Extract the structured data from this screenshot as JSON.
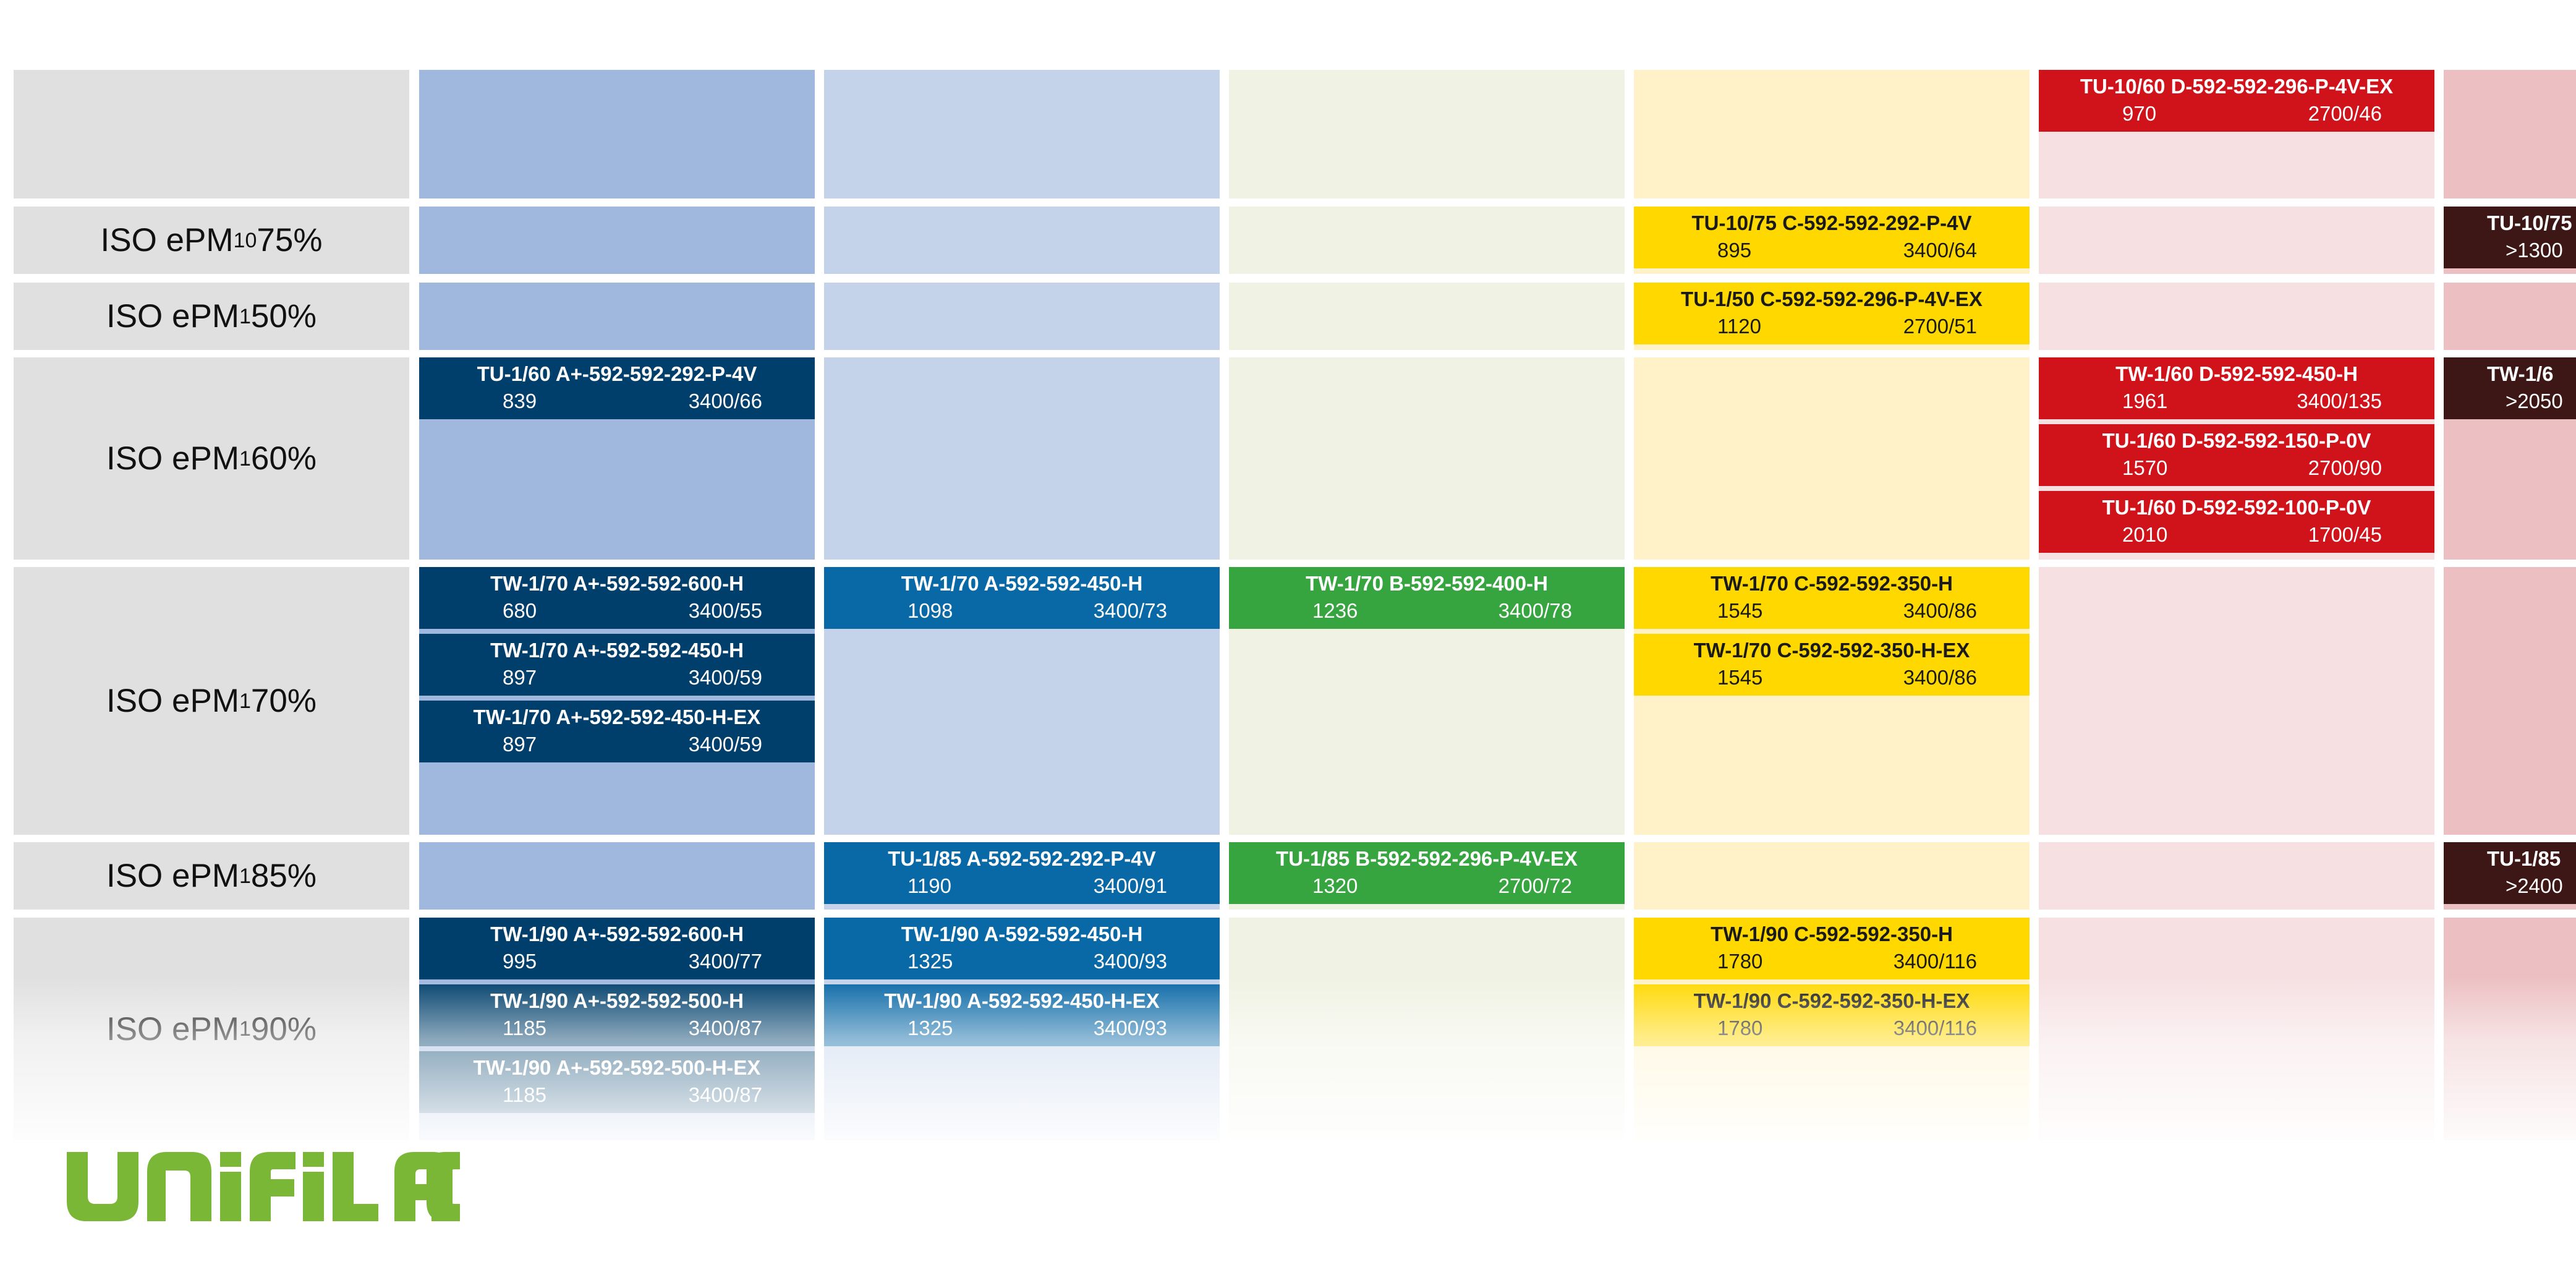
{
  "colors": {
    "label_bg": "#e0e0e0",
    "col_bg": [
      "#a1b8de",
      "#c4d3ea",
      "#f0f2e3",
      "#fff2c8",
      "#f6e0e2",
      "#ecc0c2"
    ],
    "prod_bg": {
      "navy": "#003f6b",
      "blue": "#0968a6",
      "green": "#36a43f",
      "yellow": "#ffd800",
      "red": "#d0121a",
      "maroon": "#3d1716"
    },
    "prod_fg": {
      "navy": "#ffffff",
      "blue": "#ffffff",
      "green": "#ffffff",
      "yellow": "#1a1a1a",
      "red": "#ffffff",
      "maroon": "#ffffff"
    },
    "logo_green": "#7bb737"
  },
  "rows": [
    {
      "prefix": "",
      "sub": "",
      "suffix": ""
    },
    {
      "prefix": "ISO ePM",
      "sub": "10",
      "suffix": " 75%"
    },
    {
      "prefix": "ISO ePM",
      "sub": "1",
      "suffix": " 50%"
    },
    {
      "prefix": "ISO ePM",
      "sub": "1",
      "suffix": " 60%"
    },
    {
      "prefix": "ISO ePM",
      "sub": "1",
      "suffix": " 70%"
    },
    {
      "prefix": "ISO ePM",
      "sub": "1",
      "suffix": " 85%"
    },
    {
      "prefix": "ISO ePM",
      "sub": "1",
      "suffix": " 90%"
    }
  ],
  "products": [
    {
      "row": 0,
      "col": 4,
      "slot": 0,
      "color": "red",
      "code": "TU-10/60 D-592-592-296-P-4V-EX",
      "a": "970",
      "b": "2700/46"
    },
    {
      "row": 1,
      "col": 3,
      "slot": 0,
      "color": "yellow",
      "code": "TU-10/75 C-592-592-292-P-4V",
      "a": "895",
      "b": "3400/64"
    },
    {
      "row": 1,
      "col": 5,
      "slot": 0,
      "color": "maroon",
      "code": "TU-10/75",
      "a": ">1300",
      "b": ""
    },
    {
      "row": 2,
      "col": 3,
      "slot": 0,
      "color": "yellow",
      "code": "TU-1/50 C-592-592-296-P-4V-EX",
      "a": "1120",
      "b": "2700/51"
    },
    {
      "row": 3,
      "col": 0,
      "slot": 0,
      "color": "navy",
      "code": "TU-1/60 A+-592-592-292-P-4V",
      "a": "839",
      "b": "3400/66"
    },
    {
      "row": 3,
      "col": 4,
      "slot": 0,
      "color": "red",
      "code": "TW-1/60 D-592-592-450-H",
      "a": "1961",
      "b": "3400/135"
    },
    {
      "row": 3,
      "col": 4,
      "slot": 1,
      "color": "red",
      "code": "TU-1/60 D-592-592-150-P-0V",
      "a": "1570",
      "b": "2700/90"
    },
    {
      "row": 3,
      "col": 4,
      "slot": 2,
      "color": "red",
      "code": "TU-1/60 D-592-592-100-P-0V",
      "a": "2010",
      "b": "1700/45"
    },
    {
      "row": 3,
      "col": 5,
      "slot": 0,
      "color": "maroon",
      "code": "TW-1/6",
      "a": ">2050",
      "b": ""
    },
    {
      "row": 4,
      "col": 0,
      "slot": 0,
      "color": "navy",
      "code": "TW-1/70 A+-592-592-600-H",
      "a": "680",
      "b": "3400/55"
    },
    {
      "row": 4,
      "col": 0,
      "slot": 1,
      "color": "navy",
      "code": "TW-1/70 A+-592-592-450-H",
      "a": "897",
      "b": "3400/59"
    },
    {
      "row": 4,
      "col": 0,
      "slot": 2,
      "color": "navy",
      "code": "TW-1/70 A+-592-592-450-H-EX",
      "a": "897",
      "b": "3400/59"
    },
    {
      "row": 4,
      "col": 1,
      "slot": 0,
      "color": "blue",
      "code": "TW-1/70 A-592-592-450-H",
      "a": "1098",
      "b": "3400/73"
    },
    {
      "row": 4,
      "col": 2,
      "slot": 0,
      "color": "green",
      "code": "TW-1/70 B-592-592-400-H",
      "a": "1236",
      "b": "3400/78"
    },
    {
      "row": 4,
      "col": 3,
      "slot": 0,
      "color": "yellow",
      "code": "TW-1/70 C-592-592-350-H",
      "a": "1545",
      "b": "3400/86"
    },
    {
      "row": 4,
      "col": 3,
      "slot": 1,
      "color": "yellow",
      "code": "TW-1/70 C-592-592-350-H-EX",
      "a": "1545",
      "b": "3400/86"
    },
    {
      "row": 5,
      "col": 1,
      "slot": 0,
      "color": "blue",
      "code": "TU-1/85 A-592-592-292-P-4V",
      "a": "1190",
      "b": "3400/91"
    },
    {
      "row": 5,
      "col": 2,
      "slot": 0,
      "color": "green",
      "code": "TU-1/85 B-592-592-296-P-4V-EX",
      "a": "1320",
      "b": "2700/72"
    },
    {
      "row": 5,
      "col": 5,
      "slot": 0,
      "color": "maroon",
      "code": "TU-1/85",
      "a": ">2400",
      "b": ""
    },
    {
      "row": 6,
      "col": 0,
      "slot": 0,
      "color": "navy",
      "code": "TW-1/90 A+-592-592-600-H",
      "a": "995",
      "b": "3400/77"
    },
    {
      "row": 6,
      "col": 0,
      "slot": 1,
      "color": "navy",
      "code": "TW-1/90 A+-592-592-500-H",
      "a": "1185",
      "b": "3400/87"
    },
    {
      "row": 6,
      "col": 0,
      "slot": 2,
      "color": "navy",
      "code": "TW-1/90 A+-592-592-500-H-EX",
      "a": "1185",
      "b": "3400/87"
    },
    {
      "row": 6,
      "col": 1,
      "slot": 0,
      "color": "blue",
      "code": "TW-1/90 A-592-592-450-H",
      "a": "1325",
      "b": "3400/93"
    },
    {
      "row": 6,
      "col": 1,
      "slot": 1,
      "color": "blue",
      "code": "TW-1/90 A-592-592-450-H-EX",
      "a": "1325",
      "b": "3400/93"
    },
    {
      "row": 6,
      "col": 3,
      "slot": 0,
      "color": "yellow",
      "code": "TW-1/90 C-592-592-350-H",
      "a": "1780",
      "b": "3400/116"
    },
    {
      "row": 6,
      "col": 3,
      "slot": 1,
      "color": "yellow",
      "code": "TW-1/90 C-592-592-350-H-EX",
      "a": "1780",
      "b": "3400/116"
    }
  ],
  "logo": {
    "text": "UNIFIL AG"
  }
}
